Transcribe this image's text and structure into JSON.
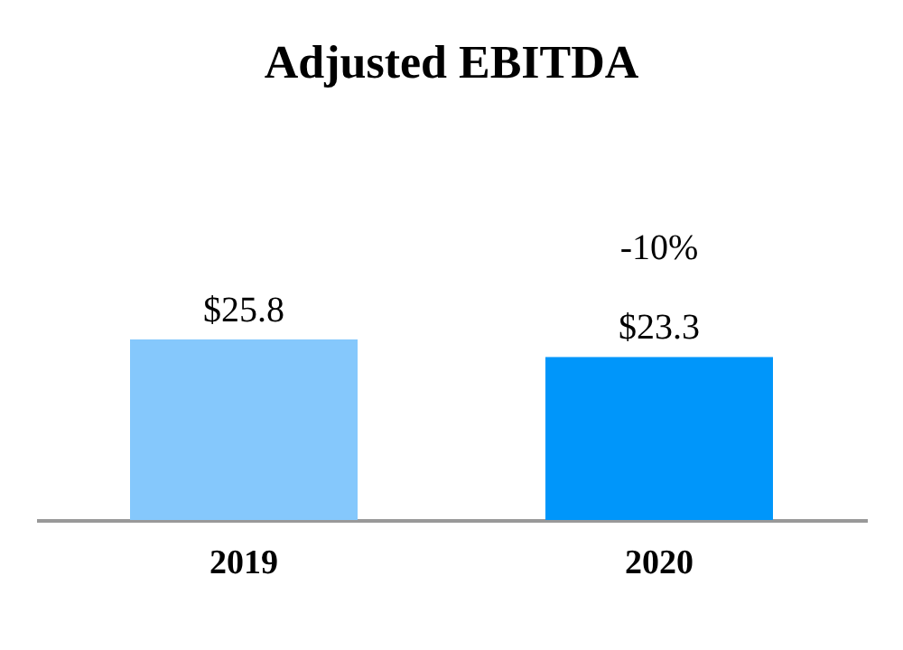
{
  "chart_data": {
    "type": "bar",
    "title": "Adjusted EBITDA",
    "categories": [
      "2019",
      "2020"
    ],
    "values": [
      25.8,
      23.3
    ],
    "value_labels": [
      "$25.8",
      "$23.3"
    ],
    "colors": [
      "#85c8fc",
      "#0096fa"
    ],
    "annotations": [
      "-10%"
    ],
    "grid": false
  }
}
